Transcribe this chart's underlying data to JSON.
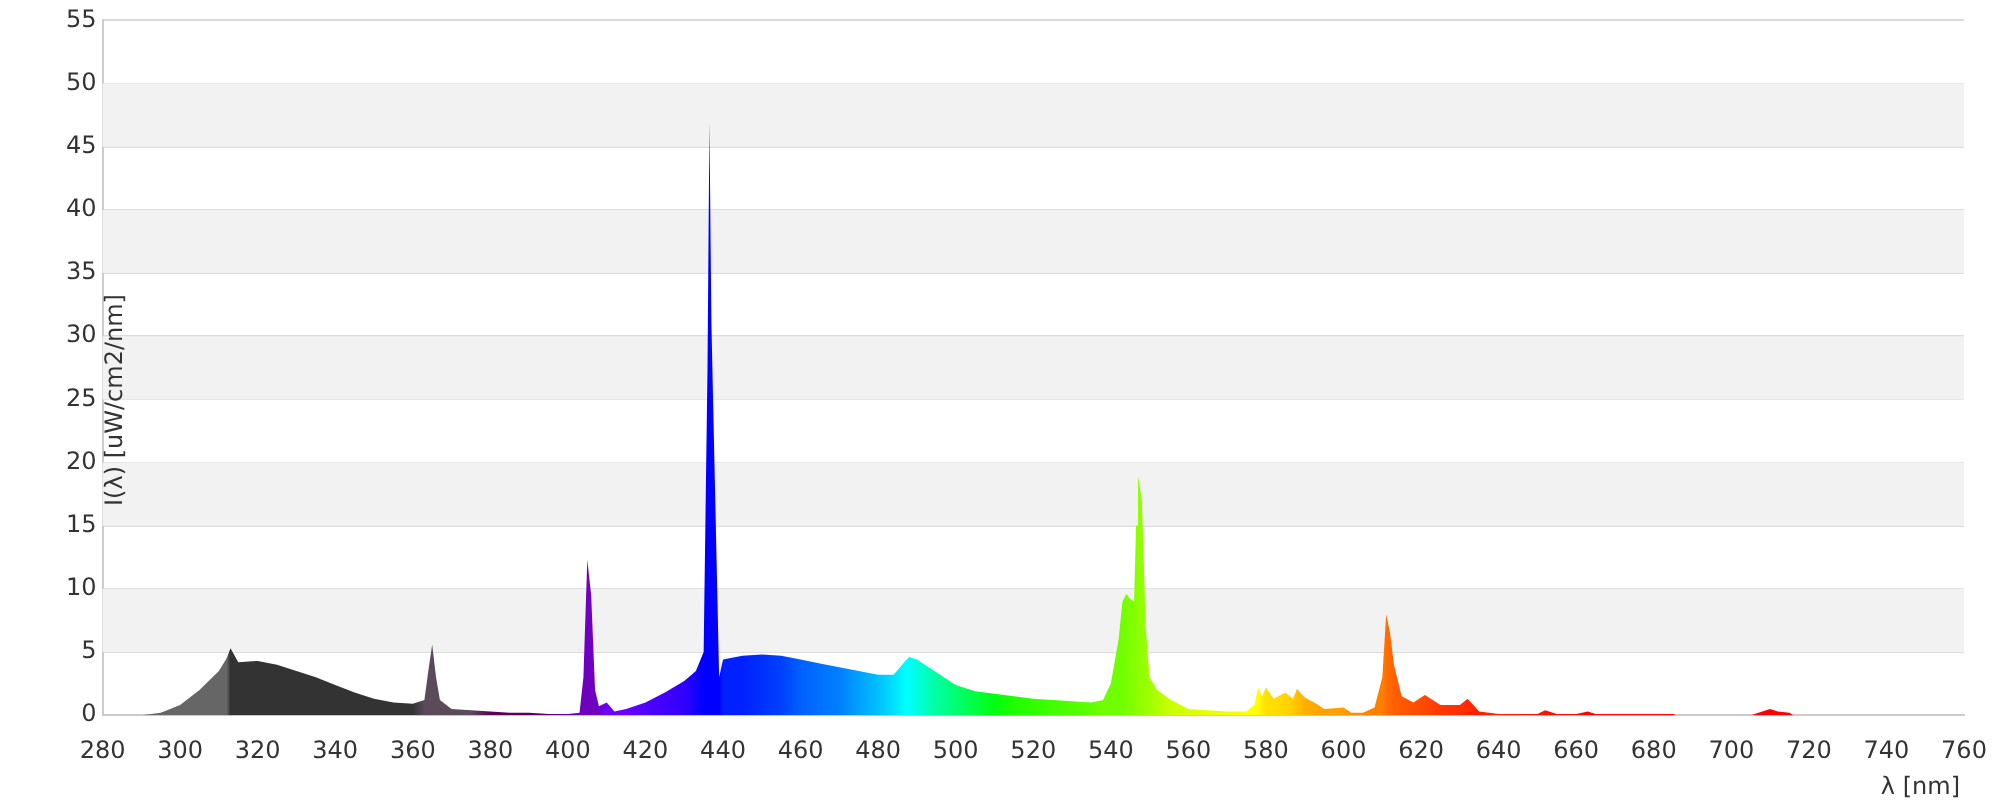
{
  "chart_data": {
    "type": "area",
    "xlabel": "λ [nm]",
    "ylabel": "I(λ)  [uW/cm2/nm]",
    "xlim": [
      280,
      760
    ],
    "xticks": [
      280,
      300,
      320,
      340,
      360,
      380,
      400,
      420,
      440,
      460,
      480,
      500,
      520,
      540,
      560,
      580,
      600,
      620,
      640,
      660,
      680,
      700,
      720,
      740,
      760
    ],
    "ylim": [
      0,
      55
    ],
    "yticks": [
      0,
      5,
      10,
      15,
      20,
      25,
      30,
      35,
      40,
      45,
      50,
      55
    ],
    "grid": "y",
    "legend": false,
    "marker": "none",
    "series": [
      {
        "x": [
          290,
          295,
          300,
          305,
          310,
          312,
          313,
          315,
          320,
          325,
          330,
          335,
          340,
          345,
          350,
          355,
          360,
          363,
          364,
          365,
          366,
          367,
          370,
          375,
          380,
          385,
          390,
          395,
          400,
          403,
          404,
          405,
          406,
          407,
          408,
          410,
          412,
          415,
          420,
          425,
          430,
          433,
          435,
          436,
          436.5,
          437,
          438,
          439,
          440,
          445,
          450,
          455,
          460,
          465,
          470,
          475,
          480,
          484,
          487,
          488,
          490,
          495,
          500,
          505,
          510,
          515,
          520,
          525,
          530,
          535,
          538,
          540,
          542,
          543,
          544,
          545,
          546,
          546.5,
          547,
          548,
          549,
          550,
          552,
          555,
          560,
          565,
          570,
          575,
          577,
          578,
          579,
          580,
          582,
          585,
          587,
          588,
          590,
          593,
          595,
          600,
          602,
          605,
          608,
          610,
          611,
          612,
          613,
          615,
          618,
          621,
          623,
          625,
          630,
          632,
          635,
          640,
          645,
          650,
          652,
          655,
          660,
          663,
          665,
          680,
          685,
          686,
          705,
          708,
          710,
          712,
          715,
          716
        ],
        "values": [
          0,
          0.2,
          0.8,
          2,
          3.5,
          4.5,
          5.3,
          4.2,
          4.3,
          4,
          3.5,
          3,
          2.4,
          1.8,
          1.3,
          1,
          0.9,
          1.2,
          3.5,
          5.6,
          3,
          1.2,
          0.5,
          0.4,
          0.3,
          0.2,
          0.2,
          0.1,
          0.1,
          0.2,
          3,
          12.3,
          9.5,
          2,
          0.7,
          1,
          0.3,
          0.5,
          1,
          1.8,
          2.7,
          3.5,
          5,
          27.5,
          47,
          31,
          17,
          3,
          4.4,
          4.7,
          4.8,
          4.7,
          4.4,
          4.1,
          3.8,
          3.5,
          3.2,
          3.2,
          4.3,
          4.6,
          4.4,
          3.4,
          2.4,
          1.9,
          1.7,
          1.5,
          1.3,
          1.2,
          1.1,
          1,
          1.2,
          2.5,
          6,
          9,
          9.6,
          9.2,
          9,
          15,
          19,
          17,
          7,
          3,
          2,
          1.3,
          0.5,
          0.4,
          0.3,
          0.3,
          0.8,
          2.2,
          1.5,
          2.2,
          1.3,
          1.8,
          1.3,
          2.1,
          1.4,
          0.9,
          0.5,
          0.6,
          0.2,
          0.2,
          0.6,
          3,
          8,
          6.5,
          4,
          1.5,
          1,
          1.6,
          1.2,
          0.8,
          0.8,
          1.3,
          0.3,
          0.1,
          0.1,
          0.1,
          0.4,
          0.1,
          0.1,
          0.3,
          0.1,
          0.1,
          0.1,
          0,
          0,
          0.3,
          0.5,
          0.3,
          0.2,
          0
        ],
        "colors": [
          "#666666",
          "#666666",
          "#666666",
          "#666666",
          "#666666",
          "#666666",
          "#333333",
          "#333333",
          "#333333",
          "#333333",
          "#333333",
          "#333333",
          "#333333",
          "#333333",
          "#333333",
          "#333333",
          "#333333",
          "#5a4a5a",
          "#5a4a5a",
          "#5a4a5a",
          "#5a4a5a",
          "#5a4a5a",
          "#5a4a5a",
          "#5a4a5a",
          "#5a005a",
          "#5a005a",
          "#5a005a",
          "#5a005a",
          "#7000c0",
          "#7000c0",
          "#7000c0",
          "#7000c0",
          "#7000c0",
          "#7000c0",
          "#7000c0",
          "#6a00ff",
          "#6a00ff",
          "#6a00ff",
          "#5000ff",
          "#4000ff",
          "#3000ff",
          "#1500ff",
          "#0000ff",
          "#0000ff",
          "#0000ff",
          "#0000ff",
          "#0000ff",
          "#0000ff",
          "#0020ff",
          "#0020ff",
          "#0030ff",
          "#0040ff",
          "#0060ff",
          "#0070ff",
          "#0080ff",
          "#00a0ff",
          "#00c0ff",
          "#00e0ff",
          "#00ffff",
          "#00ffff",
          "#00ffe0",
          "#00ffa0",
          "#00ff70",
          "#00ff40",
          "#00ff10",
          "#20ff00",
          "#30ff00",
          "#40ff00",
          "#50ff00",
          "#60ff00",
          "#70ff00",
          "#70ff00",
          "#70ff00",
          "#70ff00",
          "#78ff00",
          "#80ff00",
          "#80ff00",
          "#88ff00",
          "#90ff00",
          "#90ff00",
          "#98ff00",
          "#a0ff00",
          "#b0ff00",
          "#c8ff00",
          "#d8ff00",
          "#e8ff00",
          "#f0ff00",
          "#ffff00",
          "#ffff00",
          "#ffff00",
          "#ffee00",
          "#ffe000",
          "#ffdd00",
          "#ffd500",
          "#ffcc00",
          "#ffc000",
          "#ffb000",
          "#ffa800",
          "#ffa000",
          "#ff9f00",
          "#ff9000",
          "#ff8800",
          "#ff8000",
          "#ff8000",
          "#ff7000",
          "#ff6800",
          "#ff6000",
          "#ff5800",
          "#ff5000",
          "#ff4800",
          "#ff4000",
          "#ff3800",
          "#ff3000",
          "#ff2800",
          "#ff2000",
          "#ff2000",
          "#ff1800",
          "#ff1000",
          "#ff1000",
          "#ff0800",
          "#ff0800",
          "#ff0000",
          "#ff0000",
          "#ff0000",
          "#ff0000",
          "#ff0000",
          "#ff0000",
          "#ff0000",
          "#ff0000",
          "#ff0000",
          "#ff0000",
          "#ff0000"
        ]
      }
    ]
  }
}
